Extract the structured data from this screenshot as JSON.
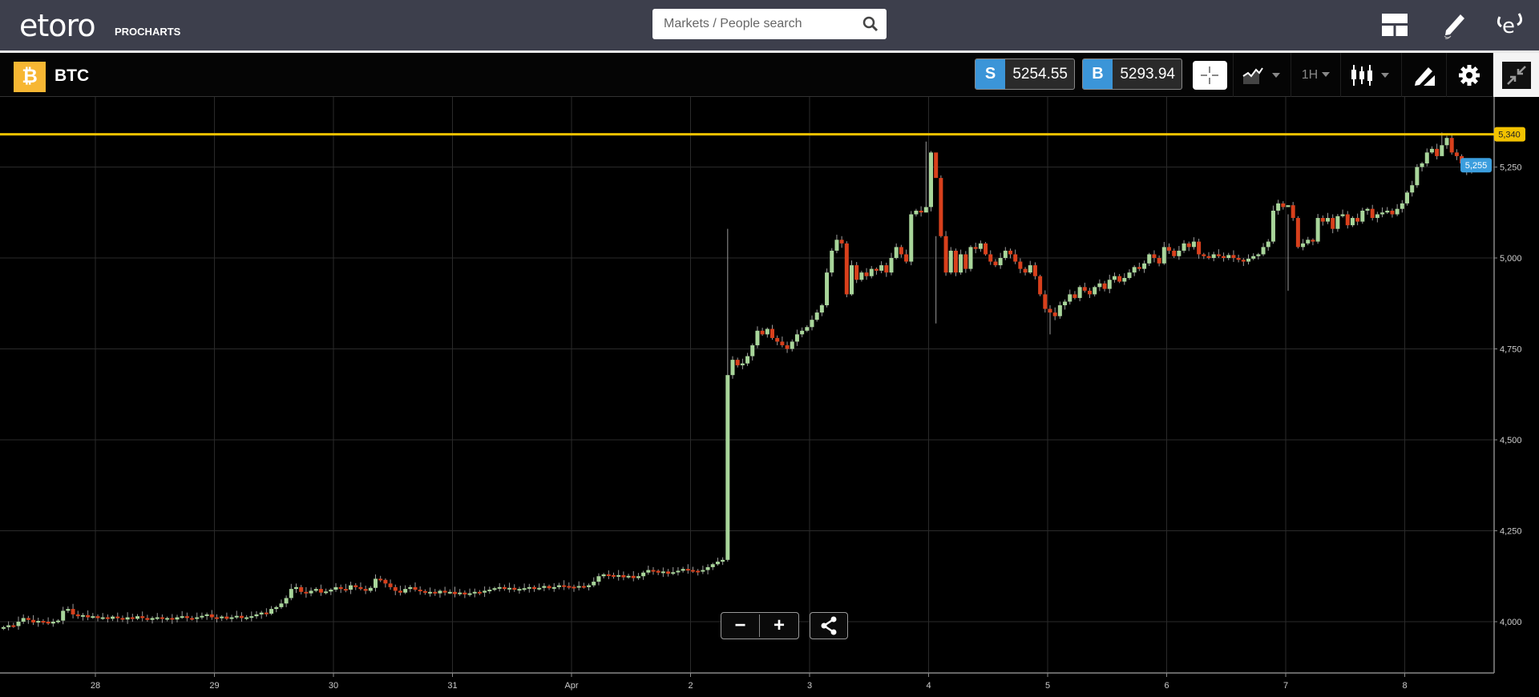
{
  "header": {
    "logo_text": "etoro",
    "logo_sub": "PROCHARTS",
    "search_placeholder": "Markets / People search",
    "icons": [
      "search-icon",
      "layout-icon",
      "pencil-icon",
      "etoro-profile-icon"
    ]
  },
  "instrument": {
    "symbol": "BTC",
    "icon": "bitcoin-icon",
    "sell_label": "S",
    "sell_price": "5254.55",
    "buy_label": "B",
    "buy_price": "5293.94"
  },
  "toolbar": {
    "timeframe": "1H",
    "icons": [
      "crosshair-icon",
      "chart-compare-icon",
      "candlestick-icon",
      "drawing-tools-icon",
      "gear-icon",
      "collapse-icon"
    ]
  },
  "colors": {
    "up": "#a8d59a",
    "down": "#d8401c",
    "alert_line": "#f2c200",
    "current_price": "#3b9ede",
    "accent": "#3b95d8"
  },
  "chart_data": {
    "type": "candlestick",
    "interval": "1H",
    "x_ticks": [
      "28",
      "29",
      "30",
      "31",
      "Apr",
      "2",
      "3",
      "4",
      "5",
      "6",
      "7",
      "8"
    ],
    "y_ticks": [
      4000,
      4250,
      4500,
      4750,
      5000,
      5250
    ],
    "y_tick_labels": [
      "4,000",
      "4,250",
      "4,500",
      "4,750",
      "5,000",
      "5,250"
    ],
    "grid": true,
    "alert_line": {
      "value": 5340,
      "label": "5,340"
    },
    "current_price": {
      "value": 5255,
      "label": "5,255"
    },
    "closes": [
      3985,
      3990,
      3988,
      4000,
      4010,
      4005,
      3998,
      4002,
      4000,
      3995,
      4000,
      4003,
      4030,
      4035,
      4020,
      4015,
      4018,
      4012,
      4015,
      4010,
      4012,
      4008,
      4014,
      4010,
      4006,
      4012,
      4008,
      4015,
      4010,
      4005,
      4010,
      4012,
      4008,
      4010,
      4006,
      4012,
      4015,
      4010,
      4008,
      4012,
      4016,
      4020,
      4012,
      4010,
      4014,
      4008,
      4012,
      4016,
      4010,
      4012,
      4015,
      4020,
      4025,
      4022,
      4035,
      4040,
      4050,
      4065,
      4090,
      4095,
      4082,
      4078,
      4085,
      4090,
      4080,
      4083,
      4088,
      4095,
      4090,
      4088,
      4100,
      4095,
      4090,
      4085,
      4093,
      4118,
      4115,
      4105,
      4095,
      4085,
      4080,
      4090,
      4095,
      4088,
      4084,
      4080,
      4082,
      4078,
      4085,
      4080,
      4082,
      4076,
      4080,
      4075,
      4078,
      4082,
      4080,
      4085,
      4088,
      4092,
      4095,
      4090,
      4093,
      4088,
      4090,
      4092,
      4095,
      4090,
      4093,
      4098,
      4092,
      4095,
      4100,
      4098,
      4096,
      4094,
      4098,
      4095,
      4100,
      4110,
      4125,
      4130,
      4128,
      4125,
      4128,
      4122,
      4126,
      4120,
      4125,
      4135,
      4142,
      4140,
      4135,
      4138,
      4132,
      4136,
      4140,
      4145,
      4142,
      4140,
      4138,
      4142,
      4150,
      4158,
      4165,
      4170,
      4678,
      4720,
      4705,
      4710,
      4730,
      4760,
      4800,
      4790,
      4805,
      4780,
      4770,
      4760,
      4750,
      4770,
      4790,
      4800,
      4810,
      4830,
      4850,
      4870,
      4960,
      5020,
      5050,
      5040,
      4900,
      4980,
      4940,
      4960,
      4950,
      4970,
      4965,
      4980,
      4960,
      5000,
      5030,
      5010,
      4990,
      5120,
      5130,
      5125,
      5140,
      5290,
      5220,
      5060,
      4960,
      5020,
      4960,
      5010,
      4970,
      5030,
      5025,
      5040,
      5010,
      4990,
      4980,
      5000,
      5020,
      5010,
      4990,
      4970,
      4960,
      4980,
      4950,
      4900,
      4860,
      4850,
      4840,
      4870,
      4880,
      4900,
      4890,
      4920,
      4910,
      4900,
      4920,
      4930,
      4915,
      4940,
      4950,
      4935,
      4945,
      4960,
      4975,
      4970,
      4985,
      5010,
      5000,
      4985,
      5030,
      5020,
      5005,
      5020,
      5040,
      5030,
      5045,
      5010,
      5005,
      5000,
      5010,
      5005,
      5000,
      5008,
      5000,
      4995,
      4990,
      4998,
      5005,
      5010,
      5030,
      5045,
      5130,
      5150,
      5140,
      5145,
      5110,
      5030,
      5040,
      5050,
      5045,
      5110,
      5100,
      5110,
      5080,
      5115,
      5120,
      5090,
      5110,
      5100,
      5130,
      5135,
      5110,
      5120,
      5125,
      5130,
      5120,
      5135,
      5150,
      5180,
      5200,
      5250,
      5260,
      5290,
      5300,
      5280,
      5310,
      5330,
      5290,
      5280,
      5260,
      5240,
      5255
    ],
    "notable_wicks": [
      {
        "candle": 146,
        "high": 5080,
        "low": 4165
      },
      {
        "candle": 186,
        "high": 5320,
        "low": 5140
      },
      {
        "candle": 188,
        "high": 5060,
        "low": 4820
      },
      {
        "candle": 211,
        "high": 4870,
        "low": 4790
      },
      {
        "candle": 259,
        "high": 5120,
        "low": 4910
      },
      {
        "candle": 290,
        "high": 5345,
        "low": 5290
      }
    ]
  },
  "controls": {
    "zoom_out": "−",
    "zoom_in": "+",
    "share": "share-icon"
  }
}
